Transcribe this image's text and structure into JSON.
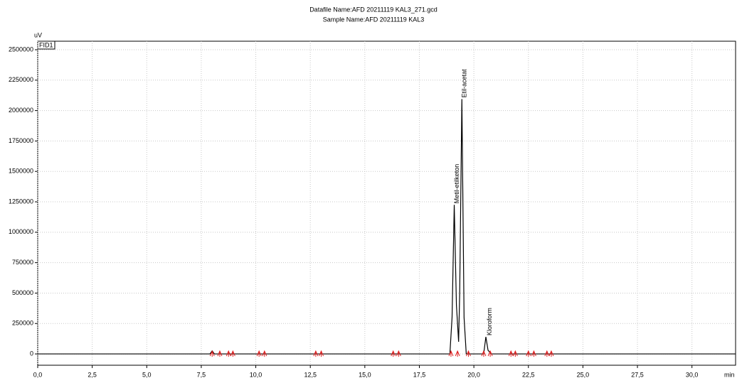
{
  "chart_data": {
    "type": "line",
    "title": "Datafile Name:AFD 20211119 KAL3_271.gcd",
    "subtitle": "Sample Name:AFD 20211119 KAL3",
    "y_label": "uV",
    "x_label": "min",
    "detector_label": "FID1",
    "grid": true,
    "color": "#000000",
    "marker_color": "#e02020",
    "xlim": [
      0,
      32
    ],
    "ylim": [
      -93000,
      2570000
    ],
    "xticks": [
      {
        "value": 0,
        "label": "0,0"
      },
      {
        "value": 2.5,
        "label": "2,5"
      },
      {
        "value": 5,
        "label": "5,0"
      },
      {
        "value": 7.5,
        "label": "7,5"
      },
      {
        "value": 10,
        "label": "10,0"
      },
      {
        "value": 12.5,
        "label": "12,5"
      },
      {
        "value": 15,
        "label": "15,0"
      },
      {
        "value": 17.5,
        "label": "17,5"
      },
      {
        "value": 20,
        "label": "20,0"
      },
      {
        "value": 22.5,
        "label": "22,5"
      },
      {
        "value": 25,
        "label": "25,0"
      },
      {
        "value": 27.5,
        "label": "27,5"
      },
      {
        "value": 30,
        "label": "30,0"
      }
    ],
    "yticks": [
      0,
      250000,
      500000,
      750000,
      1000000,
      1250000,
      1500000,
      1750000,
      2000000,
      2250000,
      2500000
    ],
    "x": [
      0,
      7.9,
      8.0,
      8.1,
      18.9,
      19.0,
      19.1,
      19.2,
      19.3,
      19.35,
      19.45,
      19.55,
      19.65,
      20.45,
      20.55,
      20.65,
      20.8,
      32
    ],
    "values": [
      0,
      0,
      25000,
      0,
      0,
      300000,
      1225000,
      400000,
      100000,
      500000,
      2095000,
      300000,
      0,
      0,
      140000,
      30000,
      0,
      0
    ],
    "peaks": [
      {
        "name": "Metil-etilketon",
        "time": 19.1,
        "height": 1225000
      },
      {
        "name": "Etil-acetat",
        "time": 19.45,
        "height": 2095000
      },
      {
        "name": "Kloroform",
        "time": 20.6,
        "height": 140000
      }
    ],
    "integration_marks": [
      8.0,
      8.35,
      8.75,
      8.95,
      10.15,
      10.4,
      12.75,
      13.0,
      16.3,
      16.55,
      18.95,
      19.25,
      19.75,
      20.45,
      20.75,
      21.7,
      21.9,
      22.5,
      22.75,
      23.35,
      23.55
    ]
  }
}
